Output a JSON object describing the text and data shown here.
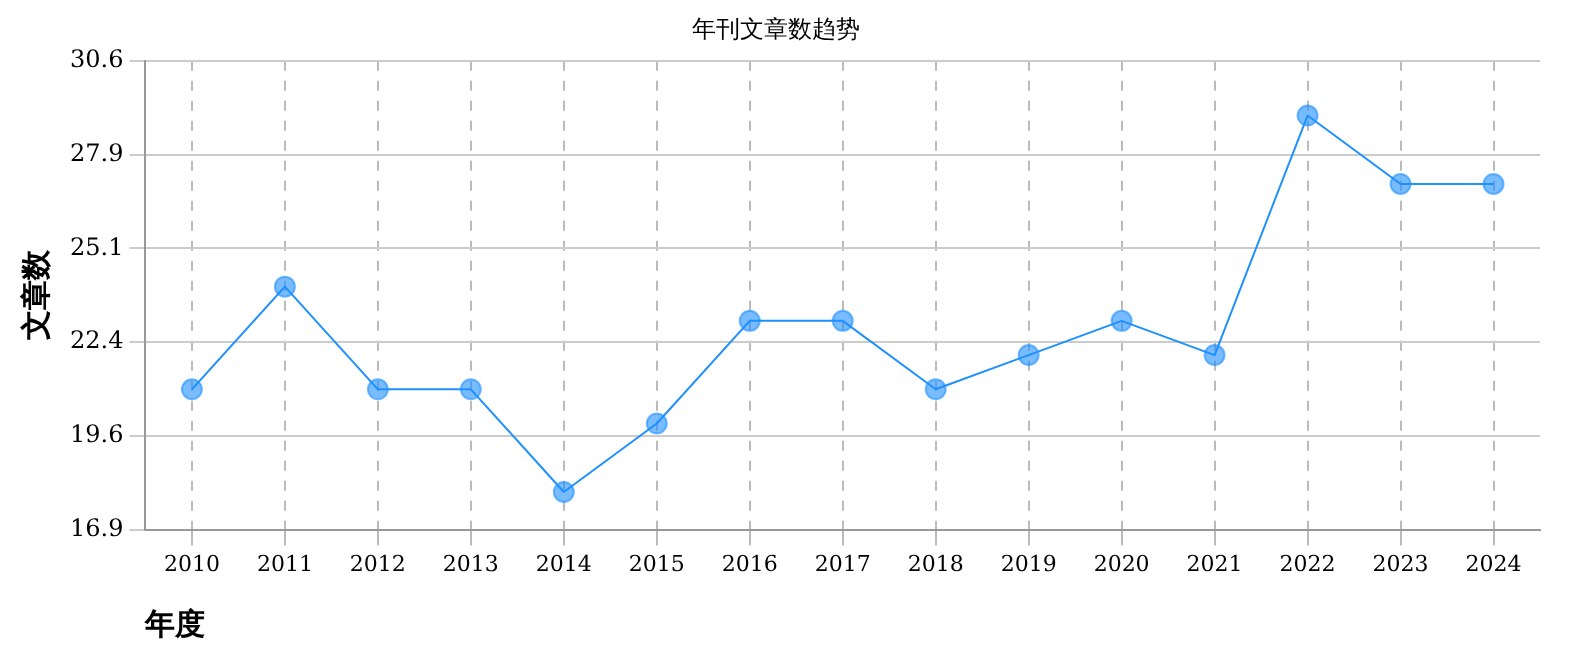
{
  "chart_data": {
    "type": "line",
    "title": "年刊文章数趋势",
    "xlabel": "年度",
    "ylabel": "文章数",
    "categories": [
      "2010",
      "2011",
      "2012",
      "2013",
      "2014",
      "2015",
      "2016",
      "2017",
      "2018",
      "2019",
      "2020",
      "2021",
      "2022",
      "2023",
      "2024"
    ],
    "series": [
      {
        "color": "#1e90ff",
        "values": [
          21,
          24,
          21,
          21,
          18,
          20,
          23,
          23,
          21,
          22,
          23,
          22,
          29,
          27,
          27
        ]
      }
    ],
    "ylim": [
      16.9,
      30.6
    ],
    "yticks": [
      {
        "value": 16.9,
        "label": "16.9"
      },
      {
        "value": 19.64,
        "label": "19.6"
      },
      {
        "value": 22.38,
        "label": "22.4"
      },
      {
        "value": 25.12,
        "label": "25.1"
      },
      {
        "value": 27.86,
        "label": "27.9"
      },
      {
        "value": 30.6,
        "label": "30.6"
      }
    ],
    "grid": true,
    "legend": false,
    "marker": "circle",
    "line_style": "solid"
  }
}
